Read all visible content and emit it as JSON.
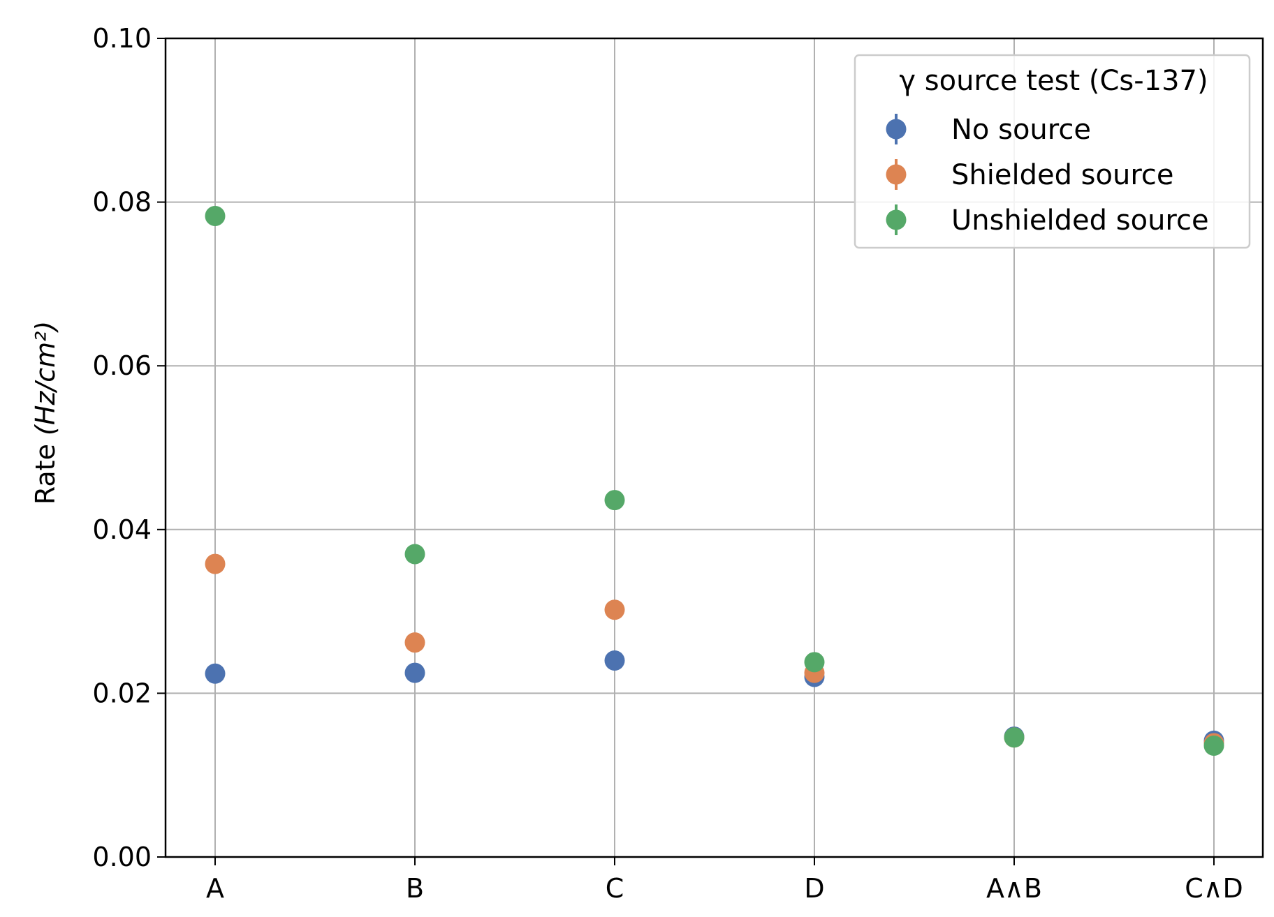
{
  "chart_data": {
    "type": "scatter",
    "categories": [
      "A",
      "B",
      "C",
      "D",
      "A∧B",
      "C∧D"
    ],
    "ylabel": "Rate",
    "ylabel_unit": "(Hz/cm²)",
    "ylim": [
      0.0,
      0.1
    ],
    "yticks": [
      0.0,
      0.02,
      0.04,
      0.06,
      0.08,
      0.1
    ],
    "ytick_labels": [
      "0.00",
      "0.02",
      "0.04",
      "0.06",
      "0.08",
      "0.10"
    ],
    "grid": true,
    "legend": {
      "title": "γ source test (Cs-137)",
      "placement": "top-right"
    },
    "series": [
      {
        "name": "No source",
        "color": "#4c72b0",
        "values": [
          0.0224,
          0.0225,
          0.024,
          0.022,
          0.0147,
          0.0142
        ]
      },
      {
        "name": "Shielded source",
        "color": "#dd8452",
        "values": [
          0.0358,
          0.0262,
          0.0302,
          0.0225,
          0.0146,
          0.0139
        ]
      },
      {
        "name": "Unshielded source",
        "color": "#55a868",
        "values": [
          0.0783,
          0.037,
          0.0436,
          0.0238,
          0.0146,
          0.0136
        ]
      }
    ]
  }
}
